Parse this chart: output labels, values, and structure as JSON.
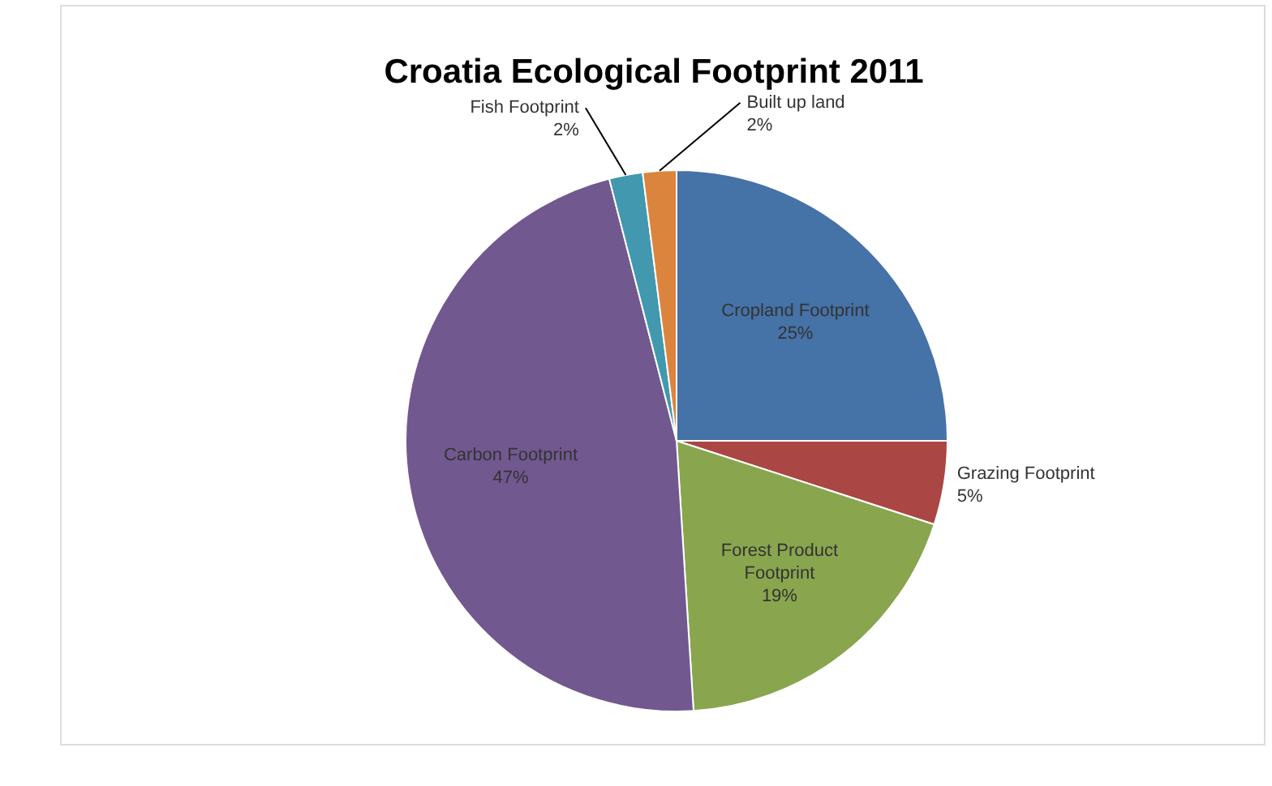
{
  "chart_data": {
    "type": "pie",
    "title": "Croatia Ecological Footprint 2011",
    "categories": [
      "Cropland Footprint",
      "Grazing Footprint",
      "Forest Product Footprint",
      "Carbon Footprint",
      "Fish Footprint",
      "Built up land"
    ],
    "values": [
      25,
      5,
      19,
      47,
      2,
      2
    ],
    "colors": [
      "#4572a7",
      "#aa4643",
      "#89a54e",
      "#71588f",
      "#4198af",
      "#db843d"
    ],
    "value_labels": [
      "25%",
      "5%",
      "19%",
      "47%",
      "2%",
      "2%"
    ]
  }
}
